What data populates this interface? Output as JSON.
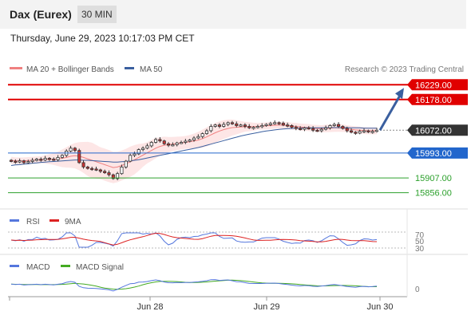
{
  "header": {
    "title": "Dax (Eurex)",
    "interval": "30 MIN",
    "timestamp": "Thursday, June 29, 2023 10:17:03 PM CET"
  },
  "legend": {
    "ma20": "MA 20 + Bollinger Bands",
    "ma50": "MA 50",
    "credit": "Research © 2023 Trading Central"
  },
  "colors": {
    "resistance": "#e00000",
    "support": "#2266cc",
    "target": "#2ca02c",
    "pivot": "#333333",
    "ma20": "#f08080",
    "ma50": "#3a5f9f",
    "band_fill": "#fde0e0",
    "arrow": "#3a5f9f",
    "up_candle": "#ffffff",
    "down_candle": "#cc3333",
    "rsi": "#5577dd",
    "rsi_ma": "#dd2222",
    "macd": "#5577dd",
    "macd_signal": "#44aa22"
  },
  "chart_data": [
    {
      "type": "line",
      "panel": "price",
      "y_range": [
        15800,
        16260
      ],
      "levels": [
        {
          "role": "resistance",
          "value": 16229.0,
          "label": "16229.00"
        },
        {
          "role": "resistance",
          "value": 16178.0,
          "label": "16178.00"
        },
        {
          "role": "pivot",
          "value": 16072.0,
          "label": "16072.00"
        },
        {
          "role": "support",
          "value": 15993.0,
          "label": "15993.00"
        },
        {
          "role": "target",
          "value": 15907.0,
          "label": "15907.00"
        },
        {
          "role": "target",
          "value": 15856.0,
          "label": "15856.00"
        }
      ],
      "x_ticks": [
        "Jun 28",
        "Jun 29",
        "Jun 30"
      ],
      "price_path": [
        15965,
        15962,
        15966,
        15960,
        15964,
        15968,
        15972,
        15969,
        15975,
        15972,
        15970,
        15978,
        15985,
        16000,
        16010,
        16002,
        15960,
        15945,
        15940,
        15938,
        15935,
        15930,
        15925,
        15918,
        15905,
        15922,
        15945,
        15965,
        15985,
        15990,
        16005,
        16010,
        16018,
        16030,
        16040,
        16035,
        16025,
        16020,
        16022,
        16028,
        16030,
        16034,
        16038,
        16045,
        16050,
        16060,
        16070,
        16085,
        16090,
        16085,
        16092,
        16098,
        16094,
        16088,
        16090,
        16085,
        16080,
        16082,
        16085,
        16088,
        16092,
        16095,
        16098,
        16096,
        16090,
        16088,
        16082,
        16078,
        16075,
        16080,
        16078,
        16072,
        16070,
        16075,
        16080,
        16088,
        16092,
        16085,
        16078,
        16070,
        16065,
        16062,
        16068,
        16070,
        16066,
        16068,
        16072
      ],
      "ma20_path": [
        15968,
        15966,
        15966,
        15966,
        15967,
        15968,
        15969,
        15970,
        15971,
        15972,
        15972,
        15973,
        15975,
        15978,
        15982,
        15984,
        15982,
        15978,
        15973,
        15968,
        15963,
        15958,
        15953,
        15948,
        15943,
        15945,
        15950,
        15956,
        15963,
        15970,
        15978,
        15986,
        15994,
        16002,
        16010,
        16016,
        16020,
        16022,
        16024,
        16026,
        16028,
        16030,
        16032,
        16035,
        16038,
        16043,
        16049,
        16056,
        16063,
        16069,
        16074,
        16078,
        16081,
        16082,
        16083,
        16084,
        16084,
        16084,
        16085,
        16086,
        16087,
        16088,
        16089,
        16090,
        16089,
        16088,
        16086,
        16085,
        16083,
        16082,
        16081,
        16079,
        16078,
        16077,
        16078,
        16079,
        16080,
        16080,
        16079,
        16077,
        16075,
        16073,
        16072,
        16071,
        16070,
        16070,
        16070
      ],
      "ma50_path": [
        15950,
        15952,
        15953,
        15955,
        15956,
        15958,
        15959,
        15961,
        15962,
        15963,
        15964,
        15965,
        15966,
        15967,
        15968,
        15969,
        15969,
        15968,
        15968,
        15967,
        15966,
        15965,
        15964,
        15963,
        15962,
        15962,
        15963,
        15964,
        15966,
        15968,
        15970,
        15973,
        15976,
        15979,
        15982,
        15985,
        15988,
        15991,
        15994,
        15997,
        16000,
        16003,
        16006,
        16009,
        16012,
        16016,
        16020,
        16024,
        16028,
        16032,
        16036,
        16040,
        16044,
        16048,
        16052,
        16055,
        16058,
        16061,
        16064,
        16067,
        16069,
        16071,
        16073,
        16075,
        16076,
        16077,
        16078,
        16079,
        16079,
        16080,
        16080,
        16080,
        16080,
        16080,
        16081,
        16081,
        16081,
        16081,
        16081,
        16081,
        16080,
        16080,
        16080,
        16079,
        16079,
        16079,
        16079
      ],
      "projection": {
        "from": 16072,
        "to": 16229
      }
    },
    {
      "type": "line",
      "panel": "rsi",
      "legend": [
        "RSI",
        "9MA"
      ],
      "y_ticks": [
        "70",
        "50",
        "30"
      ],
      "y_range": [
        20,
        80
      ]
    },
    {
      "type": "line",
      "panel": "macd",
      "legend": [
        "MACD",
        "MACD Signal"
      ],
      "y_ticks": [
        "0"
      ]
    }
  ]
}
